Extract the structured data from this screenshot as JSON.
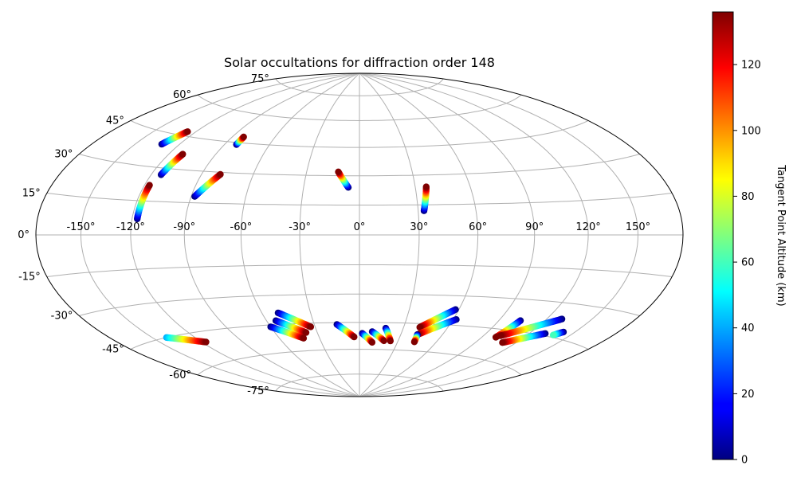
{
  "chart_data": {
    "type": "scatter",
    "projection": "hammer",
    "title": "Solar occultations for diffraction order 148",
    "colorbar": {
      "label": "Tangent Point Altitude (km)",
      "range": [
        0,
        136
      ],
      "ticks": [
        "0",
        "20",
        "40",
        "60",
        "80",
        "100",
        "120"
      ],
      "tick_values": [
        0,
        20,
        40,
        60,
        80,
        100,
        120
      ],
      "colormap": "jet"
    },
    "x_ticks": [
      "-150°",
      "-120°",
      "-90°",
      "-60°",
      "-30°",
      "0°",
      "30°",
      "60°",
      "90°",
      "120°",
      "150°"
    ],
    "x_tick_values": [
      -150,
      -120,
      -90,
      -60,
      -30,
      0,
      30,
      60,
      90,
      120,
      150
    ],
    "y_ticks": [
      "75°",
      "60°",
      "45°",
      "30°",
      "15°",
      "0°",
      "-15°",
      "-30°",
      "-45°",
      "-60°",
      "-75°"
    ],
    "y_tick_values": [
      75,
      60,
      45,
      30,
      15,
      0,
      -15,
      -30,
      -45,
      -60,
      -75
    ],
    "grid": true,
    "tracks": [
      {
        "lon": [
          -132,
          -126
        ],
        "lat": [
          40,
          47
        ],
        "alt": [
          0,
          136
        ]
      },
      {
        "lon": [
          -82,
          -82
        ],
        "lat": [
          44,
          48
        ],
        "alt": [
          0,
          136
        ]
      },
      {
        "lon": [
          -114,
          -111
        ],
        "lat": [
          27,
          37
        ],
        "alt": [
          0,
          136
        ]
      },
      {
        "lon": [
          -117,
          -117
        ],
        "lat": [
          7,
          22
        ],
        "alt": [
          0,
          136
        ]
      },
      {
        "lon": [
          -88,
          -79
        ],
        "lat": [
          18,
          29
        ],
        "alt": [
          0,
          136
        ]
      },
      {
        "lon": [
          -6,
          -12
        ],
        "lat": [
          24,
          32
        ],
        "alt": [
          0,
          136
        ]
      },
      {
        "lon": [
          33,
          36
        ],
        "lat": [
          12,
          24
        ],
        "alt": [
          0,
          136
        ]
      },
      {
        "lon": [
          -140,
          -117
        ],
        "lat": [
          -45,
          -50
        ],
        "alt": [
          40,
          136
        ]
      },
      {
        "lon": [
          -50,
          -33
        ],
        "lat": [
          -39,
          -47
        ],
        "alt": [
          0,
          136
        ]
      },
      {
        "lon": [
          -54,
          -38
        ],
        "lat": [
          -43,
          -50
        ],
        "alt": [
          0,
          136
        ]
      },
      {
        "lon": [
          -60,
          -42
        ],
        "lat": [
          -46,
          -53
        ],
        "alt": [
          0,
          136
        ]
      },
      {
        "lon": [
          -15,
          -4
        ],
        "lat": [
          -46,
          -53
        ],
        "alt": [
          0,
          136
        ]
      },
      {
        "lon": [
          2,
          10
        ],
        "lat": [
          -51,
          -56
        ],
        "alt": [
          0,
          136
        ]
      },
      {
        "lon": [
          9,
          19
        ],
        "lat": [
          -50,
          -55
        ],
        "alt": [
          0,
          136
        ]
      },
      {
        "lon": [
          18,
          24
        ],
        "lat": [
          -48,
          -55
        ],
        "alt": [
          0,
          136
        ]
      },
      {
        "lon": [
          58,
          41
        ],
        "lat": [
          -37,
          -47
        ],
        "alt": [
          0,
          136
        ]
      },
      {
        "lon": [
          62,
          42
        ],
        "lat": [
          -42,
          -51
        ],
        "alt": [
          0,
          136
        ]
      },
      {
        "lon": [
          42,
          43
        ],
        "lat": [
          -51,
          -55
        ],
        "alt": [
          0,
          136
        ]
      },
      {
        "lon": [
          104,
          100
        ],
        "lat": [
          -40,
          -49
        ],
        "alt": [
          0,
          136
        ]
      },
      {
        "lon": [
          130,
          102
        ],
        "lat": [
          -37,
          -48
        ],
        "alt": [
          0,
          136
        ]
      },
      {
        "lon": [
          131,
          110
        ],
        "lat": [
          -44,
          -51
        ],
        "alt": [
          0,
          136
        ]
      },
      {
        "lon": [
          142,
          138
        ],
        "lat": [
          -42,
          -44
        ],
        "alt": [
          0,
          60
        ]
      }
    ]
  }
}
